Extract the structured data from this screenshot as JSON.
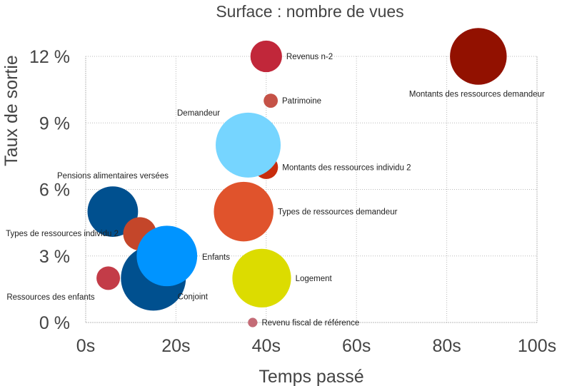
{
  "chart_data": {
    "type": "scatter",
    "title": "Surface : nombre de vues",
    "xlabel": "Temps passé",
    "ylabel": "Taux de sortie",
    "xlim": [
      0,
      100
    ],
    "ylim": [
      0,
      12
    ],
    "x_ticks": [
      0,
      20,
      40,
      60,
      80,
      100
    ],
    "x_tick_labels": [
      "0s",
      "20s",
      "40s",
      "60s",
      "80s",
      "100s"
    ],
    "y_ticks": [
      0,
      3,
      6,
      9,
      12
    ],
    "y_tick_labels": [
      "0 %",
      "3 %",
      "6 %",
      "9 %",
      "12 %"
    ],
    "grid": true,
    "points": [
      {
        "label": "Montants des ressources demandeur",
        "x": 87,
        "y": 12,
        "size": 1.45,
        "color": "#921100",
        "label_pos": "below"
      },
      {
        "label": "Revenus n-2",
        "x": 40,
        "y": 12,
        "size": 0.45,
        "color": "#c1273a",
        "label_pos": "right"
      },
      {
        "label": "Patrimoine",
        "x": 41,
        "y": 10,
        "size": 0.09,
        "color": "#c55247",
        "label_pos": "right"
      },
      {
        "label": "Montants des ressources individu 2",
        "x": 40,
        "y": 7,
        "size": 0.25,
        "color": "#c82c0d",
        "label_pos": "right"
      },
      {
        "label": "Demandeur",
        "x": 36,
        "y": 8,
        "size": 1.9,
        "color": "#76d5ff",
        "label_pos": "upper-left"
      },
      {
        "label": "Types de ressources demandeur",
        "x": 35,
        "y": 5,
        "size": 1.6,
        "color": "#e0532c",
        "label_pos": "right"
      },
      {
        "label": "Logement",
        "x": 39,
        "y": 2,
        "size": 1.55,
        "color": "#dcdc00",
        "label_pos": "right"
      },
      {
        "label": "Revenu fiscal de référence",
        "x": 37,
        "y": 0,
        "size": 0.04,
        "color": "#c46b76",
        "label_pos": "right"
      },
      {
        "label": "Pensions alimentaires versées",
        "x": 6,
        "y": 5,
        "size": 1.15,
        "color": "#00508f",
        "label_pos": "upper-left"
      },
      {
        "label": "Types de ressources individu 2",
        "x": 12,
        "y": 4,
        "size": 0.5,
        "color": "#c4462a",
        "label_pos": "left"
      },
      {
        "label": "Conjoint",
        "x": 15,
        "y": 2,
        "size": 1.9,
        "color": "#00508f",
        "label_pos": "below-right"
      },
      {
        "label": "Enfants",
        "x": 18,
        "y": 3,
        "size": 1.65,
        "color": "#0094ff",
        "label_pos": "right"
      },
      {
        "label": "Ressources des enfants",
        "x": 5,
        "y": 2,
        "size": 0.25,
        "color": "#c33c48",
        "label_pos": "below-left"
      }
    ]
  }
}
